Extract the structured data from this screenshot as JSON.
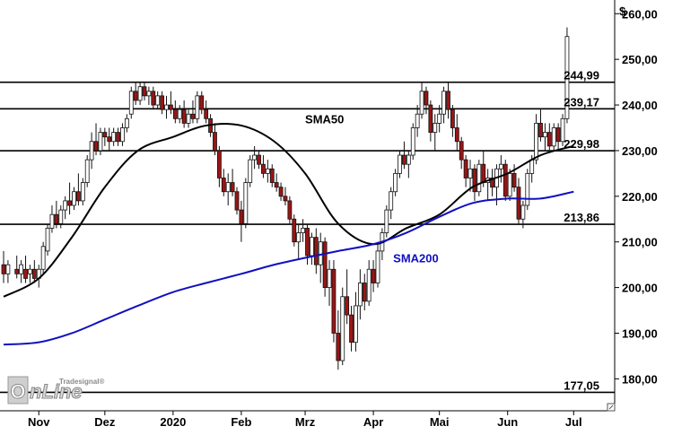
{
  "chart_data": {
    "type": "candlestick",
    "currency_label": "$",
    "y_ticks": [
      "260,00",
      "250,00",
      "240,00",
      "230,00",
      "220,00",
      "210,00",
      "200,00",
      "190,00",
      "180,00"
    ],
    "y_tick_values": [
      260,
      250,
      240,
      230,
      220,
      210,
      200,
      190,
      180
    ],
    "ylim": [
      173,
      263
    ],
    "x_ticks": [
      "Nov",
      "Dez",
      "2020",
      "Feb",
      "Mrz",
      "Apr",
      "Mai",
      "Jun",
      "Jul"
    ],
    "x_tick_dates": [
      "2019-11-01",
      "2019-12-01",
      "2020-01-01",
      "2020-02-01",
      "2020-03-01",
      "2020-04-01",
      "2020-05-01",
      "2020-06-01",
      "2020-07-01"
    ],
    "xlim": [
      "2019-10-16",
      "2020-07-18"
    ],
    "levels": [
      {
        "label": "244,99",
        "value": 244.99
      },
      {
        "label": "239,17",
        "value": 239.17
      },
      {
        "label": "229,98",
        "value": 229.98
      },
      {
        "label": "213,86",
        "value": 213.86
      },
      {
        "label": "177,05",
        "value": 177.05
      }
    ],
    "series": [
      {
        "name": "SMA50",
        "color": "#000000",
        "points": [
          [
            "2019-10-16",
            198
          ],
          [
            "2019-11-01",
            202
          ],
          [
            "2019-11-16",
            211
          ],
          [
            "2019-12-01",
            222
          ],
          [
            "2019-12-16",
            230
          ],
          [
            "2020-01-01",
            233
          ],
          [
            "2020-01-16",
            235.5
          ],
          [
            "2020-02-01",
            235.5
          ],
          [
            "2020-02-16",
            232
          ],
          [
            "2020-03-01",
            225
          ],
          [
            "2020-03-16",
            214
          ],
          [
            "2020-04-01",
            209.5
          ],
          [
            "2020-04-16",
            213
          ],
          [
            "2020-05-01",
            216
          ],
          [
            "2020-05-16",
            222
          ],
          [
            "2020-06-01",
            225
          ],
          [
            "2020-06-16",
            229
          ],
          [
            "2020-07-01",
            231
          ]
        ]
      },
      {
        "name": "SMA200",
        "color": "#1010c0",
        "points": [
          [
            "2019-10-16",
            187.5
          ],
          [
            "2019-11-01",
            188
          ],
          [
            "2019-11-16",
            190
          ],
          [
            "2019-12-01",
            193
          ],
          [
            "2019-12-16",
            196
          ],
          [
            "2020-01-01",
            199
          ],
          [
            "2020-01-16",
            201
          ],
          [
            "2020-02-01",
            203
          ],
          [
            "2020-02-16",
            205
          ],
          [
            "2020-03-01",
            206.5
          ],
          [
            "2020-03-16",
            208
          ],
          [
            "2020-04-01",
            209.5
          ],
          [
            "2020-04-16",
            212
          ],
          [
            "2020-05-01",
            215.5
          ],
          [
            "2020-05-16",
            218.5
          ],
          [
            "2020-06-01",
            219.5
          ],
          [
            "2020-06-16",
            219.5
          ],
          [
            "2020-07-01",
            221
          ]
        ]
      }
    ],
    "annotations": [
      {
        "text": "SMA50",
        "series": "SMA50"
      },
      {
        "text": "SMA200",
        "series": "SMA200"
      }
    ],
    "candle_up_color": "#ffffff",
    "candle_down_color": "#9b1515",
    "candles": [
      [
        "2019-10-16",
        205,
        208,
        201,
        203
      ],
      [
        "2019-10-18",
        203,
        206,
        201,
        205
      ],
      [
        "2019-10-22",
        204,
        207,
        202,
        203
      ],
      [
        "2019-10-24",
        203,
        206,
        201,
        205
      ],
      [
        "2019-10-26",
        204,
        207,
        201,
        202
      ],
      [
        "2019-10-28",
        203,
        205,
        201,
        204
      ],
      [
        "2019-10-30",
        204,
        206,
        201,
        202
      ],
      [
        "2019-11-01",
        202,
        205,
        200,
        204
      ],
      [
        "2019-11-03",
        204,
        210,
        203,
        209
      ],
      [
        "2019-11-05",
        208,
        214,
        207,
        213
      ],
      [
        "2019-11-07",
        213,
        218,
        212,
        216
      ],
      [
        "2019-11-09",
        216,
        219,
        213,
        214
      ],
      [
        "2019-11-11",
        214,
        218,
        213,
        217
      ],
      [
        "2019-11-13",
        217,
        220,
        215,
        219
      ],
      [
        "2019-11-15",
        219,
        223,
        216,
        218
      ],
      [
        "2019-11-17",
        218,
        222,
        217,
        221
      ],
      [
        "2019-11-19",
        221,
        225,
        218,
        219
      ],
      [
        "2019-11-21",
        219,
        224,
        218,
        223
      ],
      [
        "2019-11-23",
        223,
        229,
        222,
        228
      ],
      [
        "2019-11-25",
        228,
        234,
        226,
        232
      ],
      [
        "2019-11-27",
        232,
        236,
        229,
        230
      ],
      [
        "2019-11-29",
        230,
        235,
        229,
        234
      ],
      [
        "2019-12-01",
        234,
        235,
        231,
        233
      ],
      [
        "2019-12-03",
        233,
        235,
        230,
        232
      ],
      [
        "2019-12-05",
        232,
        235,
        231,
        234
      ],
      [
        "2019-12-07",
        234,
        235,
        231,
        232
      ],
      [
        "2019-12-09",
        232,
        236,
        231,
        235
      ],
      [
        "2019-12-11",
        235,
        238,
        234,
        237
      ],
      [
        "2019-12-13",
        238,
        244,
        237,
        243
      ],
      [
        "2019-12-15",
        243,
        245,
        240,
        241
      ],
      [
        "2019-12-17",
        241,
        245,
        240,
        244
      ],
      [
        "2019-12-19",
        244,
        245,
        241,
        242
      ],
      [
        "2019-12-21",
        242,
        244,
        240,
        243
      ],
      [
        "2019-12-23",
        243,
        244,
        239,
        240
      ],
      [
        "2019-12-25",
        240,
        243,
        239,
        242
      ],
      [
        "2019-12-27",
        242,
        243,
        238,
        239
      ],
      [
        "2019-12-29",
        239,
        242,
        237,
        240
      ],
      [
        "2019-12-31",
        240,
        243,
        238,
        239
      ],
      [
        "2020-01-02",
        239,
        241,
        236,
        237
      ],
      [
        "2020-01-04",
        237,
        240,
        236,
        239
      ],
      [
        "2020-01-06",
        239,
        241,
        235,
        236
      ],
      [
        "2020-01-08",
        236,
        239,
        235,
        238
      ],
      [
        "2020-01-10",
        238,
        241,
        236,
        237
      ],
      [
        "2020-01-12",
        237,
        243,
        236,
        242
      ],
      [
        "2020-01-14",
        242,
        243,
        238,
        239
      ],
      [
        "2020-01-16",
        239,
        241,
        236,
        237
      ],
      [
        "2020-01-18",
        237,
        238,
        233,
        234
      ],
      [
        "2020-01-20",
        234,
        236,
        229,
        230
      ],
      [
        "2020-01-22",
        230,
        231,
        222,
        224
      ],
      [
        "2020-01-24",
        224,
        226,
        220,
        221
      ],
      [
        "2020-01-26",
        221,
        225,
        218,
        223
      ],
      [
        "2020-01-28",
        223,
        226,
        220,
        221
      ],
      [
        "2020-01-30",
        221,
        222,
        216,
        217
      ],
      [
        "2020-02-01",
        217,
        219,
        210,
        214
      ],
      [
        "2020-02-03",
        214,
        224,
        213,
        223
      ],
      [
        "2020-02-05",
        223,
        229,
        222,
        228
      ],
      [
        "2020-02-07",
        228,
        231,
        226,
        229
      ],
      [
        "2020-02-09",
        229,
        230,
        226,
        227
      ],
      [
        "2020-02-11",
        227,
        229,
        224,
        225
      ],
      [
        "2020-02-13",
        225,
        228,
        223,
        226
      ],
      [
        "2020-02-15",
        226,
        227,
        222,
        223
      ],
      [
        "2020-02-17",
        223,
        225,
        221,
        222
      ],
      [
        "2020-02-19",
        222,
        223,
        219,
        220
      ],
      [
        "2020-02-21",
        220,
        222,
        218,
        219
      ],
      [
        "2020-02-23",
        219,
        220,
        214,
        215
      ],
      [
        "2020-02-25",
        215,
        216,
        209,
        210
      ],
      [
        "2020-02-27",
        210,
        214,
        206,
        212
      ],
      [
        "2020-02-29",
        212,
        215,
        210,
        213
      ],
      [
        "2020-03-02",
        213,
        214,
        205,
        207
      ],
      [
        "2020-03-04",
        207,
        212,
        205,
        211
      ],
      [
        "2020-03-06",
        211,
        213,
        203,
        205
      ],
      [
        "2020-03-08",
        205,
        212,
        201,
        210
      ],
      [
        "2020-03-10",
        210,
        211,
        198,
        200
      ],
      [
        "2020-03-12",
        200,
        206,
        196,
        204
      ],
      [
        "2020-03-14",
        204,
        206,
        188,
        190
      ],
      [
        "2020-03-16",
        190,
        195,
        182,
        184
      ],
      [
        "2020-03-18",
        184,
        200,
        183,
        198
      ],
      [
        "2020-03-20",
        198,
        204,
        192,
        194
      ],
      [
        "2020-03-22",
        194,
        196,
        186,
        188
      ],
      [
        "2020-03-24",
        188,
        199,
        186,
        196
      ],
      [
        "2020-03-26",
        196,
        204,
        193,
        201
      ],
      [
        "2020-03-28",
        201,
        203,
        195,
        197
      ],
      [
        "2020-03-30",
        197,
        206,
        196,
        204
      ],
      [
        "2020-04-01",
        204,
        206,
        199,
        201
      ],
      [
        "2020-04-03",
        201,
        210,
        200,
        208
      ],
      [
        "2020-04-05",
        208,
        213,
        206,
        212
      ],
      [
        "2020-04-07",
        212,
        218,
        211,
        217
      ],
      [
        "2020-04-09",
        217,
        222,
        215,
        221
      ],
      [
        "2020-04-11",
        221,
        226,
        220,
        225
      ],
      [
        "2020-04-13",
        225,
        230,
        224,
        229
      ],
      [
        "2020-04-15",
        229,
        232,
        226,
        227
      ],
      [
        "2020-04-17",
        227,
        230,
        224,
        229
      ],
      [
        "2020-04-19",
        229,
        236,
        228,
        235
      ],
      [
        "2020-04-21",
        235,
        240,
        233,
        238
      ],
      [
        "2020-04-23",
        238,
        245,
        237,
        243
      ],
      [
        "2020-04-25",
        243,
        244,
        238,
        240
      ],
      [
        "2020-04-27",
        240,
        241,
        232,
        234
      ],
      [
        "2020-04-29",
        234,
        238,
        230,
        236
      ],
      [
        "2020-05-01",
        236,
        240,
        234,
        238
      ],
      [
        "2020-05-03",
        238,
        244,
        236,
        243
      ],
      [
        "2020-05-05",
        243,
        245,
        237,
        239
      ],
      [
        "2020-05-07",
        239,
        240,
        233,
        235
      ],
      [
        "2020-05-09",
        235,
        238,
        230,
        232
      ],
      [
        "2020-05-11",
        232,
        233,
        226,
        228
      ],
      [
        "2020-05-13",
        228,
        229,
        222,
        224
      ],
      [
        "2020-05-15",
        224,
        228,
        221,
        226
      ],
      [
        "2020-05-17",
        226,
        227,
        219,
        221
      ],
      [
        "2020-05-19",
        221,
        228,
        220,
        227
      ],
      [
        "2020-05-21",
        227,
        230,
        222,
        223
      ],
      [
        "2020-05-23",
        223,
        226,
        219,
        224
      ],
      [
        "2020-05-25",
        224,
        226,
        220,
        222
      ],
      [
        "2020-05-27",
        222,
        227,
        218,
        226
      ],
      [
        "2020-05-29",
        226,
        229,
        223,
        227
      ],
      [
        "2020-05-31",
        227,
        228,
        219,
        220
      ],
      [
        "2020-06-02",
        220,
        226,
        219,
        225
      ],
      [
        "2020-06-04",
        225,
        227,
        221,
        222
      ],
      [
        "2020-06-06",
        222,
        224,
        214,
        215
      ],
      [
        "2020-06-08",
        215,
        219,
        213,
        218
      ],
      [
        "2020-06-10",
        218,
        226,
        217,
        225
      ],
      [
        "2020-06-12",
        225,
        229,
        223,
        228
      ],
      [
        "2020-06-14",
        228,
        238,
        227,
        236
      ],
      [
        "2020-06-16",
        236,
        239,
        232,
        233
      ],
      [
        "2020-06-18",
        233,
        236,
        230,
        234
      ],
      [
        "2020-06-20",
        234,
        236,
        230,
        231
      ],
      [
        "2020-06-22",
        231,
        236,
        230,
        235
      ],
      [
        "2020-06-24",
        235,
        236,
        230,
        232
      ],
      [
        "2020-06-26",
        232,
        238,
        231,
        237
      ],
      [
        "2020-06-28",
        237,
        257,
        236,
        255
      ]
    ]
  },
  "branding": {
    "logo_text": "OnLine",
    "tradesignal_text": "Tradesignal®"
  }
}
